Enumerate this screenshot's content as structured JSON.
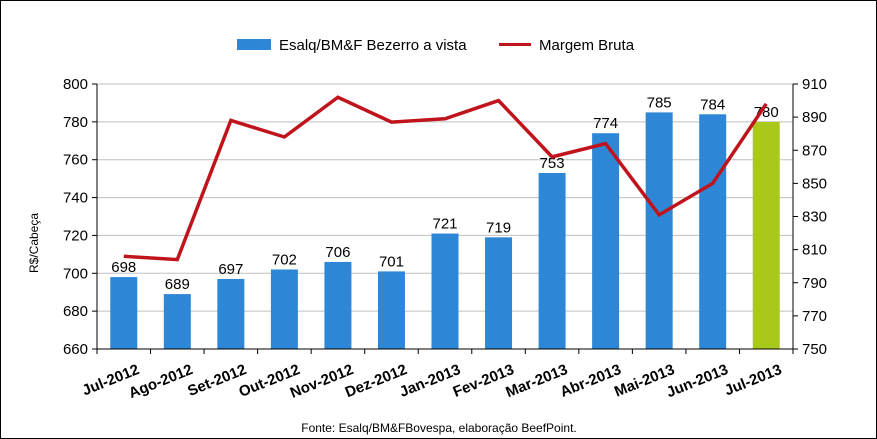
{
  "chart_data": {
    "type": "bar",
    "categories": [
      "Jul-2012",
      "Ago-2012",
      "Set-2012",
      "Out-2012",
      "Nov-2012",
      "Dez-2012",
      "Jan-2013",
      "Fev-2013",
      "Mar-2013",
      "Abr-2013",
      "Mai-2013",
      "Jun-2013",
      "Jul-2013"
    ],
    "series": [
      {
        "name": "Esalq/BM&F Bezerro a vista",
        "type": "bar",
        "axis": "left",
        "values": [
          698,
          689,
          697,
          702,
          706,
          701,
          721,
          719,
          753,
          774,
          785,
          784,
          780
        ],
        "color": "#2E86D6",
        "highlight_color": "#A8C81C",
        "highlight_index": 12
      },
      {
        "name": "Margem Bruta",
        "type": "line",
        "axis": "right",
        "values": [
          806,
          804,
          888,
          878,
          902,
          887,
          889,
          900,
          866,
          874,
          831,
          850,
          898
        ],
        "color": "#C0141C"
      }
    ],
    "ylabel": "R$/Cabeça",
    "ylim": [
      660,
      800
    ],
    "yticks": [
      660,
      680,
      700,
      720,
      740,
      760,
      780,
      800
    ],
    "y2lim": [
      750,
      910
    ],
    "y2ticks": [
      750,
      770,
      790,
      810,
      830,
      850,
      870,
      890,
      910
    ],
    "legend_position": "top-center",
    "grid": "horizontal",
    "source": "Fonte:  Esalq/BM&FBovespa,  elaboração  BeefPoint."
  }
}
